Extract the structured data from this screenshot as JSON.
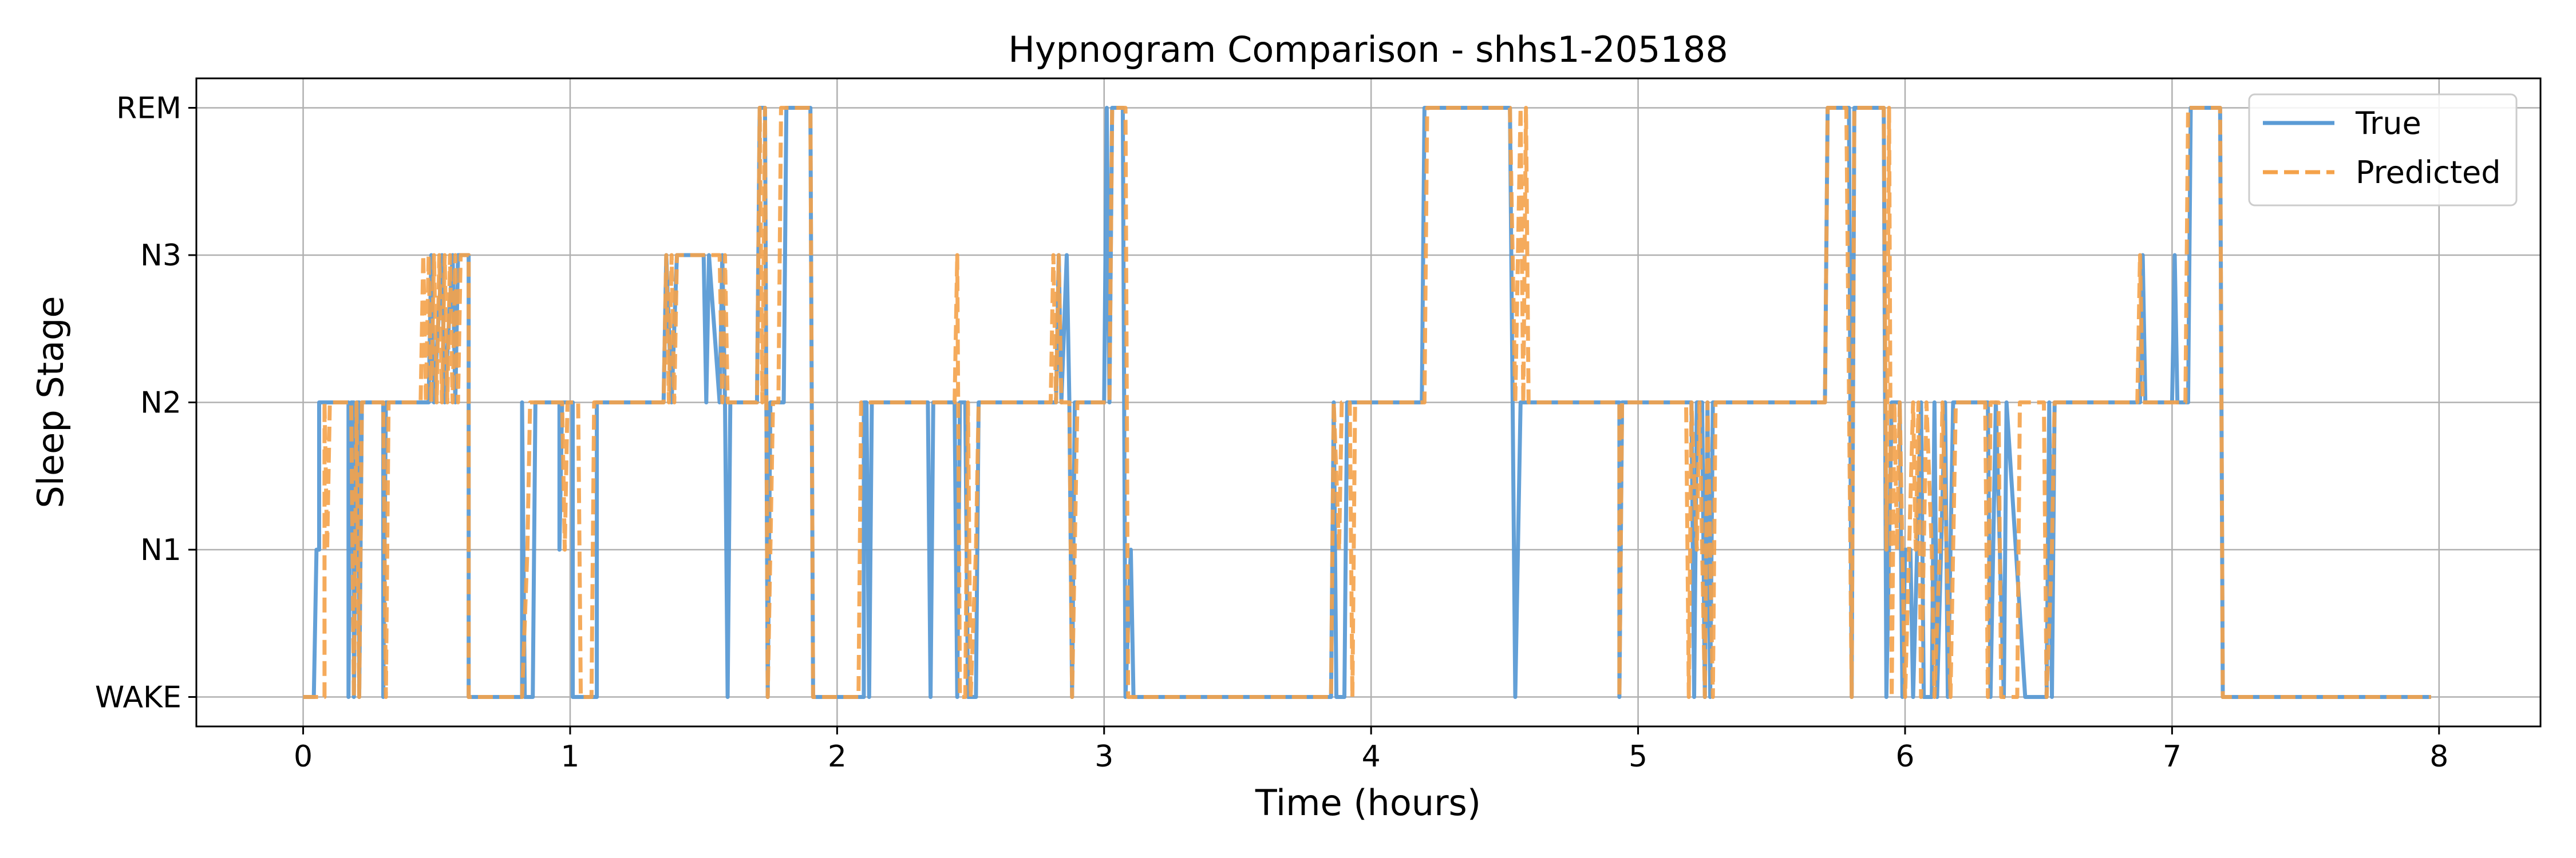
{
  "chart_data": {
    "type": "line",
    "title": "Hypnogram Comparison - shhs1-205188",
    "xlabel": "Time (hours)",
    "ylabel": "Sleep Stage",
    "xlim": [
      -0.4,
      8.38
    ],
    "ylim": [
      -0.2,
      4.2
    ],
    "xticks": [
      0,
      1,
      2,
      3,
      4,
      5,
      6,
      7,
      8
    ],
    "xtick_labels": [
      "0",
      "1",
      "2",
      "3",
      "4",
      "5",
      "6",
      "7",
      "8"
    ],
    "yticks": [
      0,
      1,
      2,
      3,
      4
    ],
    "ytick_labels": [
      "WAKE",
      "N1",
      "N2",
      "N3",
      "REM"
    ],
    "grid": true,
    "legend": "top-right",
    "series": [
      {
        "name": "True",
        "color": "#5b9bd5",
        "dash": "solid",
        "points": [
          [
            0,
            0
          ],
          [
            0.04,
            0
          ],
          [
            0.05,
            1
          ],
          [
            0.06,
            1
          ],
          [
            0.06,
            2
          ],
          [
            0.17,
            2
          ],
          [
            0.17,
            0
          ],
          [
            0.18,
            2
          ],
          [
            0.19,
            2
          ],
          [
            0.19,
            0
          ],
          [
            0.2,
            2
          ],
          [
            0.21,
            2
          ],
          [
            0.21,
            0
          ],
          [
            0.22,
            2
          ],
          [
            0.3,
            2
          ],
          [
            0.3,
            0
          ],
          [
            0.31,
            2
          ],
          [
            0.47,
            2
          ],
          [
            0.48,
            3
          ],
          [
            0.49,
            2
          ],
          [
            0.52,
            3
          ],
          [
            0.53,
            2
          ],
          [
            0.56,
            3
          ],
          [
            0.57,
            2
          ],
          [
            0.58,
            3
          ],
          [
            0.62,
            3
          ],
          [
            0.62,
            0
          ],
          [
            0.82,
            0
          ],
          [
            0.82,
            2
          ],
          [
            0.83,
            0
          ],
          [
            0.86,
            0
          ],
          [
            0.87,
            2
          ],
          [
            0.96,
            2
          ],
          [
            0.96,
            1
          ],
          [
            0.97,
            2
          ],
          [
            1.01,
            2
          ],
          [
            1.01,
            0
          ],
          [
            1.1,
            0
          ],
          [
            1.1,
            2
          ],
          [
            1.12,
            2
          ],
          [
            1.13,
            2
          ],
          [
            1.35,
            2
          ],
          [
            1.36,
            3
          ],
          [
            1.38,
            2
          ],
          [
            1.4,
            3
          ],
          [
            1.5,
            3
          ],
          [
            1.51,
            2
          ],
          [
            1.52,
            3
          ],
          [
            1.56,
            2
          ],
          [
            1.57,
            3
          ],
          [
            1.58,
            2
          ],
          [
            1.59,
            0
          ],
          [
            1.6,
            2
          ],
          [
            1.7,
            2
          ],
          [
            1.71,
            4
          ],
          [
            1.73,
            4
          ],
          [
            1.74,
            0
          ],
          [
            1.75,
            2
          ],
          [
            1.8,
            2
          ],
          [
            1.81,
            4
          ],
          [
            1.9,
            4
          ],
          [
            1.91,
            0
          ],
          [
            2.1,
            0
          ],
          [
            2.1,
            2
          ],
          [
            2.11,
            2
          ],
          [
            2.12,
            0
          ],
          [
            2.13,
            2
          ],
          [
            2.34,
            2
          ],
          [
            2.35,
            0
          ],
          [
            2.36,
            2
          ],
          [
            2.44,
            2
          ],
          [
            2.45,
            0
          ],
          [
            2.46,
            2
          ],
          [
            2.48,
            2
          ],
          [
            2.49,
            0
          ],
          [
            2.52,
            0
          ],
          [
            2.53,
            2
          ],
          [
            2.82,
            2
          ],
          [
            2.83,
            3
          ],
          [
            2.84,
            2
          ],
          [
            2.86,
            3
          ],
          [
            2.87,
            2
          ],
          [
            2.88,
            0
          ],
          [
            2.89,
            2
          ],
          [
            3.0,
            2
          ],
          [
            3.01,
            4
          ],
          [
            3.02,
            2
          ],
          [
            3.03,
            4
          ],
          [
            3.07,
            4
          ],
          [
            3.08,
            0
          ],
          [
            3.1,
            1
          ],
          [
            3.11,
            0
          ],
          [
            3.85,
            0
          ],
          [
            3.86,
            2
          ],
          [
            3.87,
            0
          ],
          [
            3.9,
            0
          ],
          [
            3.91,
            2
          ],
          [
            4.19,
            2
          ],
          [
            4.2,
            4
          ],
          [
            4.52,
            4
          ],
          [
            4.53,
            2
          ],
          [
            4.54,
            0
          ],
          [
            4.56,
            2
          ],
          [
            4.93,
            2
          ],
          [
            4.93,
            0
          ],
          [
            4.94,
            2
          ],
          [
            5.2,
            2
          ],
          [
            5.21,
            0
          ],
          [
            5.22,
            2
          ],
          [
            5.24,
            2
          ],
          [
            5.25,
            0
          ],
          [
            5.26,
            2
          ],
          [
            5.27,
            0
          ],
          [
            5.28,
            2
          ],
          [
            5.7,
            2
          ],
          [
            5.71,
            4
          ],
          [
            5.79,
            4
          ],
          [
            5.8,
            0
          ],
          [
            5.81,
            4
          ],
          [
            5.92,
            4
          ],
          [
            5.93,
            0
          ],
          [
            5.95,
            2
          ],
          [
            5.98,
            2
          ],
          [
            5.99,
            0
          ],
          [
            6.0,
            1
          ],
          [
            6.02,
            1
          ],
          [
            6.03,
            0
          ],
          [
            6.06,
            2
          ],
          [
            6.07,
            0
          ],
          [
            6.1,
            0
          ],
          [
            6.11,
            2
          ],
          [
            6.12,
            0
          ],
          [
            6.15,
            2
          ],
          [
            6.16,
            0
          ],
          [
            6.17,
            1
          ],
          [
            6.18,
            2
          ],
          [
            6.31,
            2
          ],
          [
            6.32,
            0
          ],
          [
            6.34,
            2
          ],
          [
            6.37,
            0
          ],
          [
            6.38,
            2
          ],
          [
            6.45,
            0
          ],
          [
            6.53,
            0
          ],
          [
            6.54,
            2
          ],
          [
            6.55,
            0
          ],
          [
            6.56,
            2
          ],
          [
            6.88,
            2
          ],
          [
            6.89,
            3
          ],
          [
            6.9,
            2
          ],
          [
            7.0,
            2
          ],
          [
            7.01,
            3
          ],
          [
            7.02,
            2
          ],
          [
            7.06,
            2
          ],
          [
            7.07,
            4
          ],
          [
            7.18,
            4
          ],
          [
            7.19,
            0
          ],
          [
            7.97,
            0
          ]
        ]
      },
      {
        "name": "Predicted",
        "color": "#f4a24a",
        "dash": "dashed",
        "points": [
          [
            0,
            0
          ],
          [
            0.08,
            0
          ],
          [
            0.08,
            2
          ],
          [
            0.09,
            1
          ],
          [
            0.1,
            2
          ],
          [
            0.18,
            2
          ],
          [
            0.19,
            0
          ],
          [
            0.2,
            2
          ],
          [
            0.21,
            0
          ],
          [
            0.22,
            2
          ],
          [
            0.3,
            2
          ],
          [
            0.31,
            0
          ],
          [
            0.32,
            2
          ],
          [
            0.44,
            2
          ],
          [
            0.45,
            3
          ],
          [
            0.46,
            2
          ],
          [
            0.47,
            3
          ],
          [
            0.48,
            2
          ],
          [
            0.49,
            3
          ],
          [
            0.5,
            2
          ],
          [
            0.51,
            3
          ],
          [
            0.52,
            2
          ],
          [
            0.53,
            3
          ],
          [
            0.54,
            2
          ],
          [
            0.55,
            3
          ],
          [
            0.56,
            2
          ],
          [
            0.57,
            3
          ],
          [
            0.58,
            2
          ],
          [
            0.59,
            3
          ],
          [
            0.62,
            3
          ],
          [
            0.62,
            0
          ],
          [
            0.82,
            0
          ],
          [
            0.84,
            1
          ],
          [
            0.85,
            2
          ],
          [
            0.97,
            2
          ],
          [
            0.98,
            1
          ],
          [
            0.99,
            2
          ],
          [
            1.03,
            2
          ],
          [
            1.04,
            0
          ],
          [
            1.08,
            0
          ],
          [
            1.09,
            2
          ],
          [
            1.14,
            2
          ],
          [
            1.35,
            2
          ],
          [
            1.36,
            3
          ],
          [
            1.37,
            2
          ],
          [
            1.38,
            3
          ],
          [
            1.39,
            2
          ],
          [
            1.4,
            3
          ],
          [
            1.56,
            3
          ],
          [
            1.57,
            2
          ],
          [
            1.58,
            3
          ],
          [
            1.59,
            2
          ],
          [
            1.7,
            2
          ],
          [
            1.71,
            4
          ],
          [
            1.72,
            2
          ],
          [
            1.73,
            4
          ],
          [
            1.74,
            0
          ],
          [
            1.76,
            2
          ],
          [
            1.78,
            2
          ],
          [
            1.79,
            4
          ],
          [
            1.9,
            4
          ],
          [
            1.91,
            0
          ],
          [
            2.08,
            0
          ],
          [
            2.09,
            2
          ],
          [
            2.44,
            2
          ],
          [
            2.45,
            3
          ],
          [
            2.46,
            0
          ],
          [
            2.48,
            0
          ],
          [
            2.49,
            2
          ],
          [
            2.5,
            0
          ],
          [
            2.52,
            1
          ],
          [
            2.53,
            2
          ],
          [
            2.8,
            2
          ],
          [
            2.81,
            3
          ],
          [
            2.82,
            2
          ],
          [
            2.83,
            3
          ],
          [
            2.84,
            2
          ],
          [
            2.87,
            2
          ],
          [
            2.88,
            0
          ],
          [
            2.9,
            2
          ],
          [
            3.02,
            2
          ],
          [
            3.03,
            4
          ],
          [
            3.08,
            4
          ],
          [
            3.09,
            0
          ],
          [
            3.85,
            0
          ],
          [
            3.86,
            2
          ],
          [
            3.88,
            1
          ],
          [
            3.89,
            2
          ],
          [
            3.92,
            2
          ],
          [
            3.93,
            0
          ],
          [
            3.94,
            2
          ],
          [
            4.2,
            2
          ],
          [
            4.21,
            4
          ],
          [
            4.52,
            4
          ],
          [
            4.53,
            3
          ],
          [
            4.54,
            2
          ],
          [
            4.55,
            3
          ],
          [
            4.56,
            4
          ],
          [
            4.57,
            2
          ],
          [
            4.58,
            4
          ],
          [
            4.59,
            2
          ],
          [
            4.93,
            2
          ],
          [
            4.93,
            0
          ],
          [
            4.94,
            2
          ],
          [
            5.18,
            2
          ],
          [
            5.19,
            0
          ],
          [
            5.2,
            2
          ],
          [
            5.22,
            1
          ],
          [
            5.23,
            2
          ],
          [
            5.25,
            0
          ],
          [
            5.26,
            2
          ],
          [
            5.27,
            1
          ],
          [
            5.28,
            0
          ],
          [
            5.29,
            2
          ],
          [
            5.7,
            2
          ],
          [
            5.71,
            4
          ],
          [
            5.78,
            4
          ],
          [
            5.8,
            0
          ],
          [
            5.81,
            4
          ],
          [
            5.92,
            4
          ],
          [
            5.93,
            1
          ],
          [
            5.94,
            4
          ],
          [
            5.95,
            0
          ],
          [
            5.96,
            2
          ],
          [
            5.97,
            1
          ],
          [
            5.98,
            2
          ],
          [
            6.0,
            0
          ],
          [
            6.03,
            2
          ],
          [
            6.04,
            1
          ],
          [
            6.05,
            2
          ],
          [
            6.06,
            0
          ],
          [
            6.08,
            2
          ],
          [
            6.1,
            1
          ],
          [
            6.11,
            0
          ],
          [
            6.13,
            1
          ],
          [
            6.14,
            2
          ],
          [
            6.17,
            0
          ],
          [
            6.18,
            1
          ],
          [
            6.19,
            2
          ],
          [
            6.3,
            2
          ],
          [
            6.31,
            0
          ],
          [
            6.32,
            2
          ],
          [
            6.35,
            2
          ],
          [
            6.36,
            0
          ],
          [
            6.42,
            0
          ],
          [
            6.43,
            2
          ],
          [
            6.52,
            2
          ],
          [
            6.53,
            0
          ],
          [
            6.55,
            1
          ],
          [
            6.56,
            2
          ],
          [
            6.87,
            2
          ],
          [
            6.88,
            3
          ],
          [
            6.89,
            2
          ],
          [
            7.05,
            2
          ],
          [
            7.06,
            4
          ],
          [
            7.18,
            4
          ],
          [
            7.19,
            0
          ],
          [
            7.97,
            0
          ]
        ]
      }
    ]
  }
}
